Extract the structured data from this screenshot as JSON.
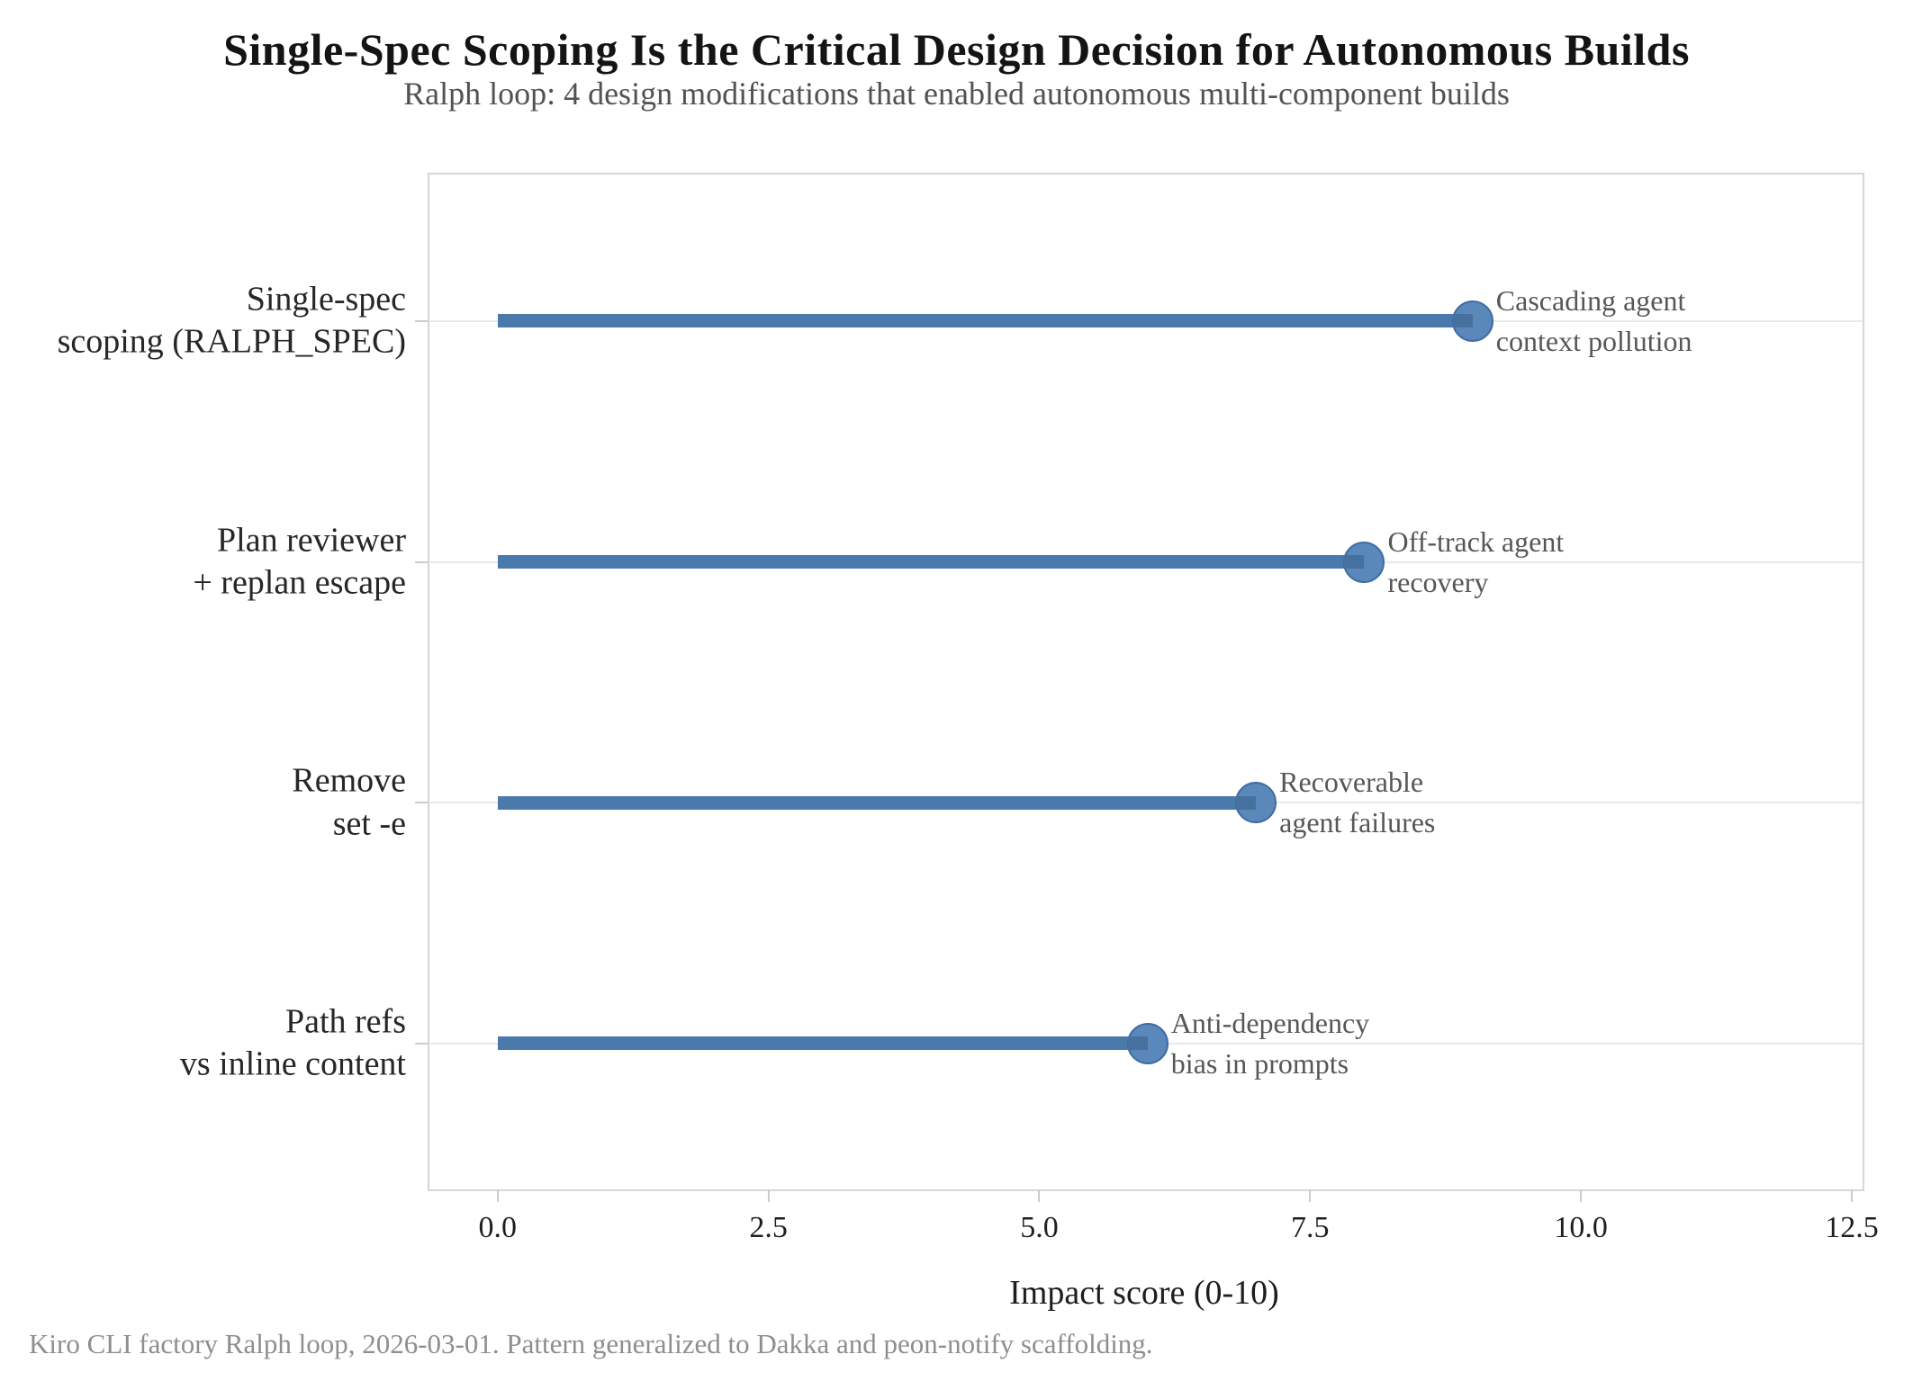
{
  "header": {
    "title": "Single-Spec Scoping Is the Critical Design Decision for Autonomous Builds",
    "subtitle": "Ralph loop: 4 design modifications that enabled autonomous multi-component builds"
  },
  "chart_data": {
    "type": "bar",
    "variant": "horizontal lollipop (stem + dot)",
    "title": "Single-Spec Scoping Is the Critical Design Decision for Autonomous Builds",
    "subtitle": "Ralph loop: 4 design modifications that enabled autonomous multi-component builds",
    "xlabel": "Impact score (0-10)",
    "categories": [
      "Single-spec scoping (RALPH_SPEC)",
      "Plan reviewer + replan escape",
      "Remove set -e",
      "Path refs vs inline content"
    ],
    "values": [
      9,
      8,
      7,
      6
    ],
    "annotations": [
      "Cascading agent context pollution",
      "Off-track agent recovery",
      "Recoverable agent failures",
      "Anti-dependency bias in prompts"
    ],
    "rows": [
      {
        "label_lines": [
          "Single-spec",
          "scoping (RALPH_SPEC)"
        ],
        "value": 9,
        "annotation_lines": [
          "Cascading agent",
          "context pollution"
        ]
      },
      {
        "label_lines": [
          "Plan reviewer",
          "+ replan escape"
        ],
        "value": 8,
        "annotation_lines": [
          "Off-track agent",
          "recovery"
        ]
      },
      {
        "label_lines": [
          "Remove",
          "set -e"
        ],
        "value": 7,
        "annotation_lines": [
          "Recoverable",
          "agent failures"
        ]
      },
      {
        "label_lines": [
          "Path refs",
          "vs inline content"
        ],
        "value": 6,
        "annotation_lines": [
          "Anti-dependency",
          "bias in prompts"
        ]
      }
    ],
    "xlim": [
      -0.63,
      12.6
    ],
    "xticks": [
      {
        "value": 0,
        "label": "0.0"
      },
      {
        "value": 2.5,
        "label": "2.5"
      },
      {
        "value": 5,
        "label": "5.0"
      },
      {
        "value": 7.5,
        "label": "7.5"
      },
      {
        "value": 10,
        "label": "10.0"
      },
      {
        "value": 12.5,
        "label": "12.5"
      }
    ],
    "grid": "horizontal gridlines only",
    "legend": "none",
    "colors": {
      "stem": "#4a79ab",
      "stem_over_dot": "#46719e",
      "dot_fill": "#5b88bb",
      "dot_edge": "#3f6ba1",
      "gridline": "#e9e9e9",
      "frame": "#d6d6d6",
      "tick": "#cccccc",
      "annotation_text": "#575757",
      "label_text": "#272727"
    }
  },
  "footer": {
    "note": "Kiro CLI factory Ralph loop, 2026-03-01. Pattern generalized to Dakka and peon-notify scaffolding."
  }
}
